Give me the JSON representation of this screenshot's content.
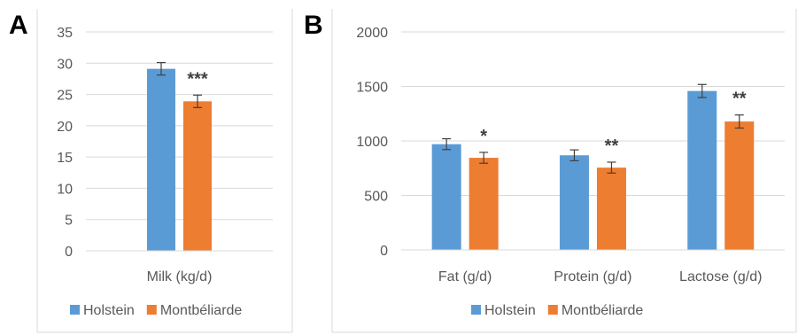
{
  "chart_data": [
    {
      "panel_label": "A",
      "type": "bar",
      "categories": [
        "Milk (kg/d)"
      ],
      "series": [
        {
          "name": "Holstein",
          "values": [
            29.1
          ],
          "errors": [
            1.0
          ],
          "color": "#5b9bd5"
        },
        {
          "name": "Montbéliarde",
          "values": [
            23.9
          ],
          "errors": [
            1.0
          ],
          "color": "#ed7d31"
        }
      ],
      "significance": [
        "***"
      ],
      "ylim": [
        0,
        35
      ],
      "yticks": [
        0,
        5,
        10,
        15,
        20,
        25,
        30,
        35
      ],
      "grid": true,
      "legend": "bottom"
    },
    {
      "panel_label": "B",
      "type": "bar",
      "categories": [
        "Fat (g/d)",
        "Protein (g/d)",
        "Lactose (g/d)"
      ],
      "series": [
        {
          "name": "Holstein",
          "values": [
            970,
            868,
            1458
          ],
          "errors": [
            50,
            50,
            60
          ],
          "color": "#5b9bd5"
        },
        {
          "name": "Montbéliarde",
          "values": [
            845,
            755,
            1178
          ],
          "errors": [
            50,
            50,
            60
          ],
          "color": "#ed7d31"
        }
      ],
      "significance": [
        "*",
        "**",
        "**"
      ],
      "ylim": [
        0,
        2000
      ],
      "yticks": [
        0,
        500,
        1000,
        1500,
        2000
      ],
      "grid": true,
      "legend": "bottom"
    }
  ]
}
